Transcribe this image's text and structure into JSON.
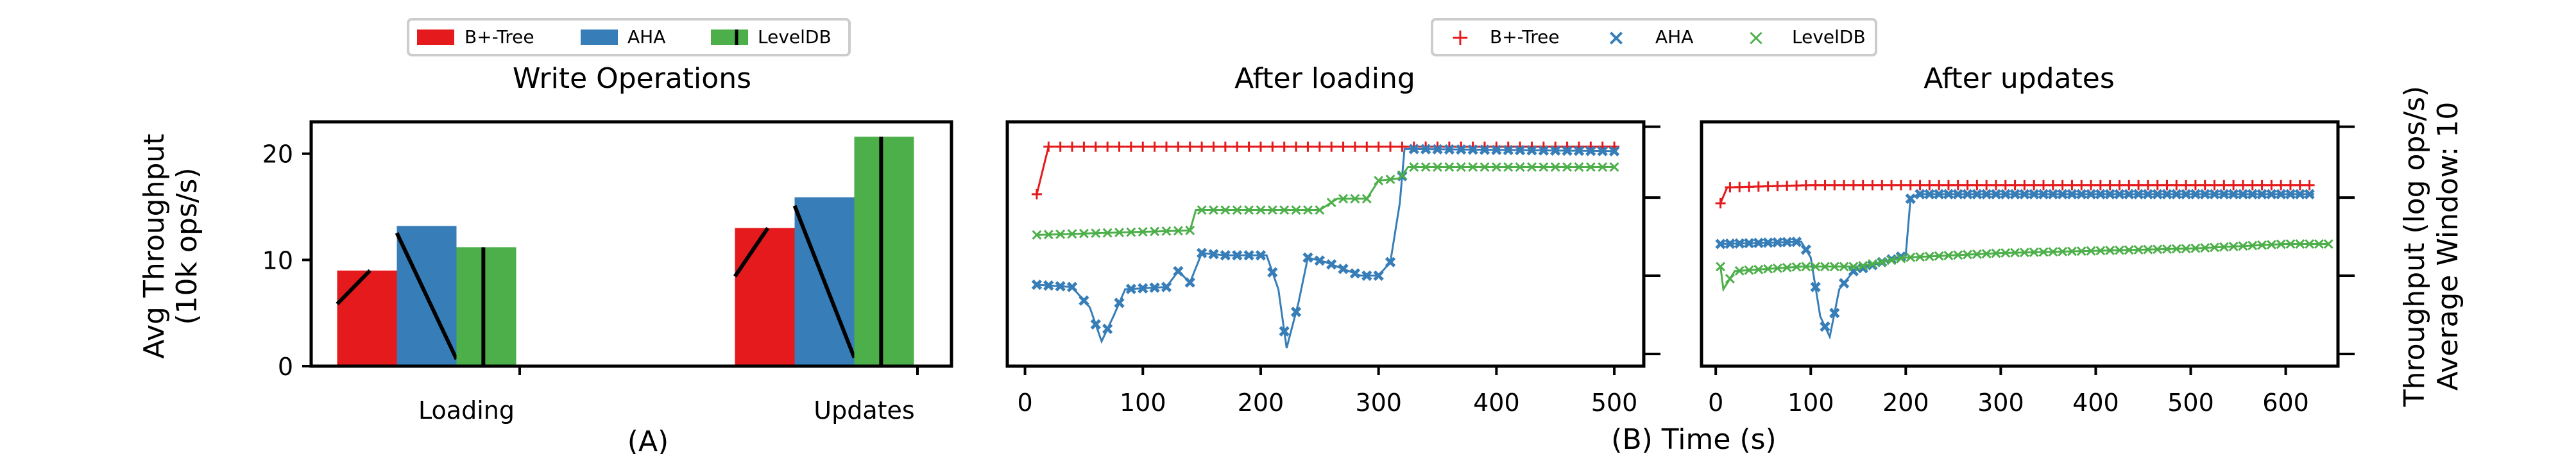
{
  "chart_data": [
    {
      "panel": "A",
      "type": "bar",
      "title": "Write Operations",
      "xlabel": "(A)",
      "ylabel": [
        "Avg Throughput",
        "(10k ops/s)"
      ],
      "categories": [
        "Loading",
        "Updates"
      ],
      "ylim": [
        0,
        23
      ],
      "yticks": [
        0,
        10,
        20
      ],
      "series": [
        {
          "name": "B+-Tree",
          "color": "#e41a1c",
          "values": [
            9.0,
            13.0
          ]
        },
        {
          "name": "AHA",
          "color": "#377eb8",
          "values": [
            13.2,
            15.9
          ]
        },
        {
          "name": "LevelDB",
          "color": "#4daf4a",
          "values": [
            11.2,
            21.6
          ]
        }
      ],
      "legend": {
        "position": "top",
        "entries": [
          "B+-Tree",
          "AHA",
          "LevelDB"
        ]
      }
    },
    {
      "panel": "B1",
      "type": "line",
      "title": "After loading",
      "xlim": [
        -15,
        525
      ],
      "xticks": [
        0,
        100,
        200,
        300,
        400,
        500
      ],
      "ylim": [
        0,
        1
      ],
      "series": [
        {
          "name": "B+-Tree",
          "color": "#e41a1c",
          "marker": "+",
          "points": [
            [
              10,
              0.72
            ],
            [
              20,
              0.93
            ],
            [
              500,
              0.93
            ]
          ]
        },
        {
          "name": "AHA",
          "color": "#377eb8",
          "marker": "x",
          "points": [
            [
              10,
              0.32
            ],
            [
              40,
              0.31
            ],
            [
              55,
              0.22
            ],
            [
              65,
              0.07
            ],
            [
              75,
              0.18
            ],
            [
              85,
              0.3
            ],
            [
              120,
              0.31
            ],
            [
              130,
              0.38
            ],
            [
              140,
              0.33
            ],
            [
              150,
              0.46
            ],
            [
              170,
              0.45
            ],
            [
              205,
              0.45
            ],
            [
              215,
              0.3
            ],
            [
              222,
              0.04
            ],
            [
              232,
              0.24
            ],
            [
              240,
              0.44
            ],
            [
              255,
              0.42
            ],
            [
              265,
              0.4
            ],
            [
              275,
              0.38
            ],
            [
              285,
              0.36
            ],
            [
              300,
              0.36
            ],
            [
              310,
              0.42
            ],
            [
              318,
              0.68
            ],
            [
              322,
              0.92
            ],
            [
              500,
              0.91
            ]
          ]
        },
        {
          "name": "LevelDB",
          "color": "#4daf4a",
          "marker": "x",
          "points": [
            [
              10,
              0.54
            ],
            [
              140,
              0.56
            ],
            [
              145,
              0.65
            ],
            [
              250,
              0.65
            ],
            [
              265,
              0.7
            ],
            [
              290,
              0.7
            ],
            [
              300,
              0.78
            ],
            [
              318,
              0.79
            ],
            [
              325,
              0.84
            ],
            [
              500,
              0.84
            ]
          ]
        }
      ],
      "legend": {
        "position": "top",
        "entries": [
          "B+-Tree",
          "AHA",
          "LevelDB"
        ]
      }
    },
    {
      "panel": "B2",
      "type": "line",
      "title": "After updates",
      "xlim": [
        -15,
        655
      ],
      "xticks": [
        0,
        100,
        200,
        300,
        400,
        500,
        600
      ],
      "ylim": [
        0,
        1
      ],
      "series": [
        {
          "name": "B+-Tree",
          "color": "#e41a1c",
          "marker": "+",
          "points": [
            [
              5,
              0.68
            ],
            [
              12,
              0.75
            ],
            [
              100,
              0.76
            ],
            [
              625,
              0.76
            ]
          ]
        },
        {
          "name": "AHA",
          "color": "#377eb8",
          "marker": "x",
          "points": [
            [
              5,
              0.5
            ],
            [
              90,
              0.51
            ],
            [
              100,
              0.44
            ],
            [
              110,
              0.18
            ],
            [
              120,
              0.09
            ],
            [
              130,
              0.3
            ],
            [
              145,
              0.38
            ],
            [
              175,
              0.42
            ],
            [
              200,
              0.45
            ],
            [
              205,
              0.7
            ],
            [
              213,
              0.72
            ],
            [
              630,
              0.72
            ]
          ]
        },
        {
          "name": "LevelDB",
          "color": "#4daf4a",
          "marker": "x",
          "points": [
            [
              5,
              0.4
            ],
            [
              8,
              0.3
            ],
            [
              20,
              0.38
            ],
            [
              90,
              0.4
            ],
            [
              150,
              0.4
            ],
            [
              200,
              0.44
            ],
            [
              300,
              0.46
            ],
            [
              400,
              0.47
            ],
            [
              500,
              0.48
            ],
            [
              600,
              0.5
            ],
            [
              645,
              0.5
            ]
          ]
        }
      ]
    }
  ],
  "shared": {
    "xlabel": "(B) Time (s)",
    "right_ylabel": [
      "Throughput (log ops/s)",
      "Average Window: 10"
    ]
  }
}
